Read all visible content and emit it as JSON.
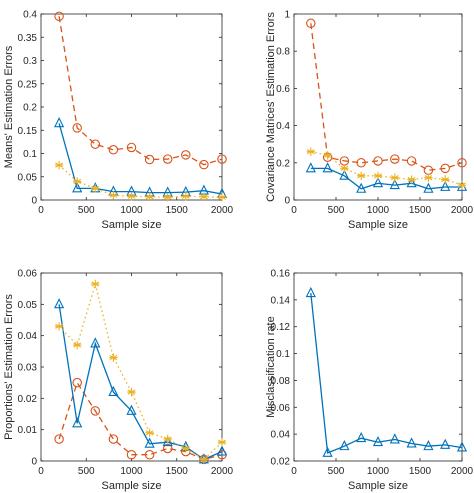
{
  "chart_data": [
    {
      "type": "line",
      "xlabel": "Sample size",
      "ylabel": "Means' Estimation Errors",
      "xlim": [
        0,
        2000
      ],
      "ylim": [
        0,
        0.4
      ],
      "xticks": [
        "0",
        "500",
        "1000",
        "1500",
        "2000"
      ],
      "yticks": [
        "0",
        "0.05",
        "0.1",
        "0.15",
        "0.2",
        "0.25",
        "0.3",
        "0.35",
        "0.4"
      ],
      "x": [
        200,
        400,
        600,
        800,
        1000,
        1200,
        1400,
        1600,
        1800,
        2000
      ],
      "series": [
        {
          "marker": "circle",
          "color": "#d95319",
          "style": "dashed",
          "values": [
            0.395,
            0.155,
            0.12,
            0.108,
            0.113,
            0.087,
            0.088,
            0.097,
            0.076,
            0.088
          ]
        },
        {
          "marker": "triangle",
          "color": "#0072bd",
          "style": "solid",
          "values": [
            0.165,
            0.025,
            0.025,
            0.018,
            0.018,
            0.016,
            0.016,
            0.017,
            0.02,
            0.013
          ]
        },
        {
          "marker": "asterisk",
          "color": "#edb120",
          "style": "dotted",
          "values": [
            0.075,
            0.04,
            0.025,
            0.01,
            0.008,
            0.007,
            0.006,
            0.008,
            0.007,
            0.006
          ]
        }
      ]
    },
    {
      "type": "line",
      "xlabel": "Sample size",
      "ylabel": "Covariance Matrices' Estimation Errors",
      "xlim": [
        0,
        2000
      ],
      "ylim": [
        0,
        1
      ],
      "xticks": [
        "0",
        "500",
        "1000",
        "1500",
        "2000"
      ],
      "yticks": [
        "0",
        "0.2",
        "0.4",
        "0.6",
        "0.8",
        "1"
      ],
      "x": [
        200,
        400,
        600,
        800,
        1000,
        1200,
        1400,
        1600,
        1800,
        2000
      ],
      "series": [
        {
          "marker": "circle",
          "color": "#d95319",
          "style": "dashed",
          "values": [
            0.95,
            0.23,
            0.21,
            0.2,
            0.21,
            0.22,
            0.21,
            0.16,
            0.17,
            0.2
          ]
        },
        {
          "marker": "triangle",
          "color": "#0072bd",
          "style": "solid",
          "values": [
            0.17,
            0.17,
            0.13,
            0.06,
            0.09,
            0.08,
            0.09,
            0.06,
            0.07,
            0.07
          ]
        },
        {
          "marker": "asterisk",
          "color": "#edb120",
          "style": "dotted",
          "values": [
            0.26,
            0.24,
            0.17,
            0.13,
            0.13,
            0.12,
            0.11,
            0.12,
            0.11,
            0.08
          ]
        }
      ]
    },
    {
      "type": "line",
      "xlabel": "Sample size",
      "ylabel": "Proportions' Estimation Errors",
      "xlim": [
        0,
        2000
      ],
      "ylim": [
        0,
        0.06
      ],
      "xticks": [
        "0",
        "500",
        "1000",
        "1500",
        "2000"
      ],
      "yticks": [
        "0",
        "0.01",
        "0.02",
        "0.03",
        "0.04",
        "0.05",
        "0.06"
      ],
      "x": [
        200,
        400,
        600,
        800,
        1000,
        1200,
        1400,
        1600,
        1800,
        2000
      ],
      "series": [
        {
          "marker": "circle",
          "color": "#d95319",
          "style": "dashed",
          "values": [
            0.007,
            0.025,
            0.016,
            0.007,
            0.002,
            0.002,
            0.004,
            0.003,
            0.0005,
            0.002
          ]
        },
        {
          "marker": "triangle",
          "color": "#0072bd",
          "style": "solid",
          "values": [
            0.05,
            0.012,
            0.0375,
            0.022,
            0.016,
            0.0055,
            0.006,
            0.0045,
            0.0005,
            0.003
          ]
        },
        {
          "marker": "asterisk",
          "color": "#edb120",
          "style": "dotted",
          "values": [
            0.043,
            0.037,
            0.0565,
            0.033,
            0.022,
            0.009,
            0.007,
            0.004,
            0.0005,
            0.006
          ]
        }
      ]
    },
    {
      "type": "line",
      "xlabel": "Sample size",
      "ylabel": "Misclassification rate",
      "xlim": [
        0,
        2000
      ],
      "ylim": [
        0.02,
        0.16
      ],
      "xticks": [
        "0",
        "500",
        "1000",
        "1500",
        "2000"
      ],
      "yticks": [
        "0.02",
        "0.04",
        "0.06",
        "0.08",
        "0.1",
        "0.12",
        "0.14",
        "0.16"
      ],
      "x": [
        200,
        400,
        600,
        800,
        1000,
        1200,
        1400,
        1600,
        1800,
        2000
      ],
      "series": [
        {
          "marker": "triangle",
          "color": "#0072bd",
          "style": "solid",
          "values": [
            0.145,
            0.026,
            0.031,
            0.037,
            0.034,
            0.036,
            0.033,
            0.031,
            0.032,
            0.03
          ]
        }
      ]
    }
  ]
}
